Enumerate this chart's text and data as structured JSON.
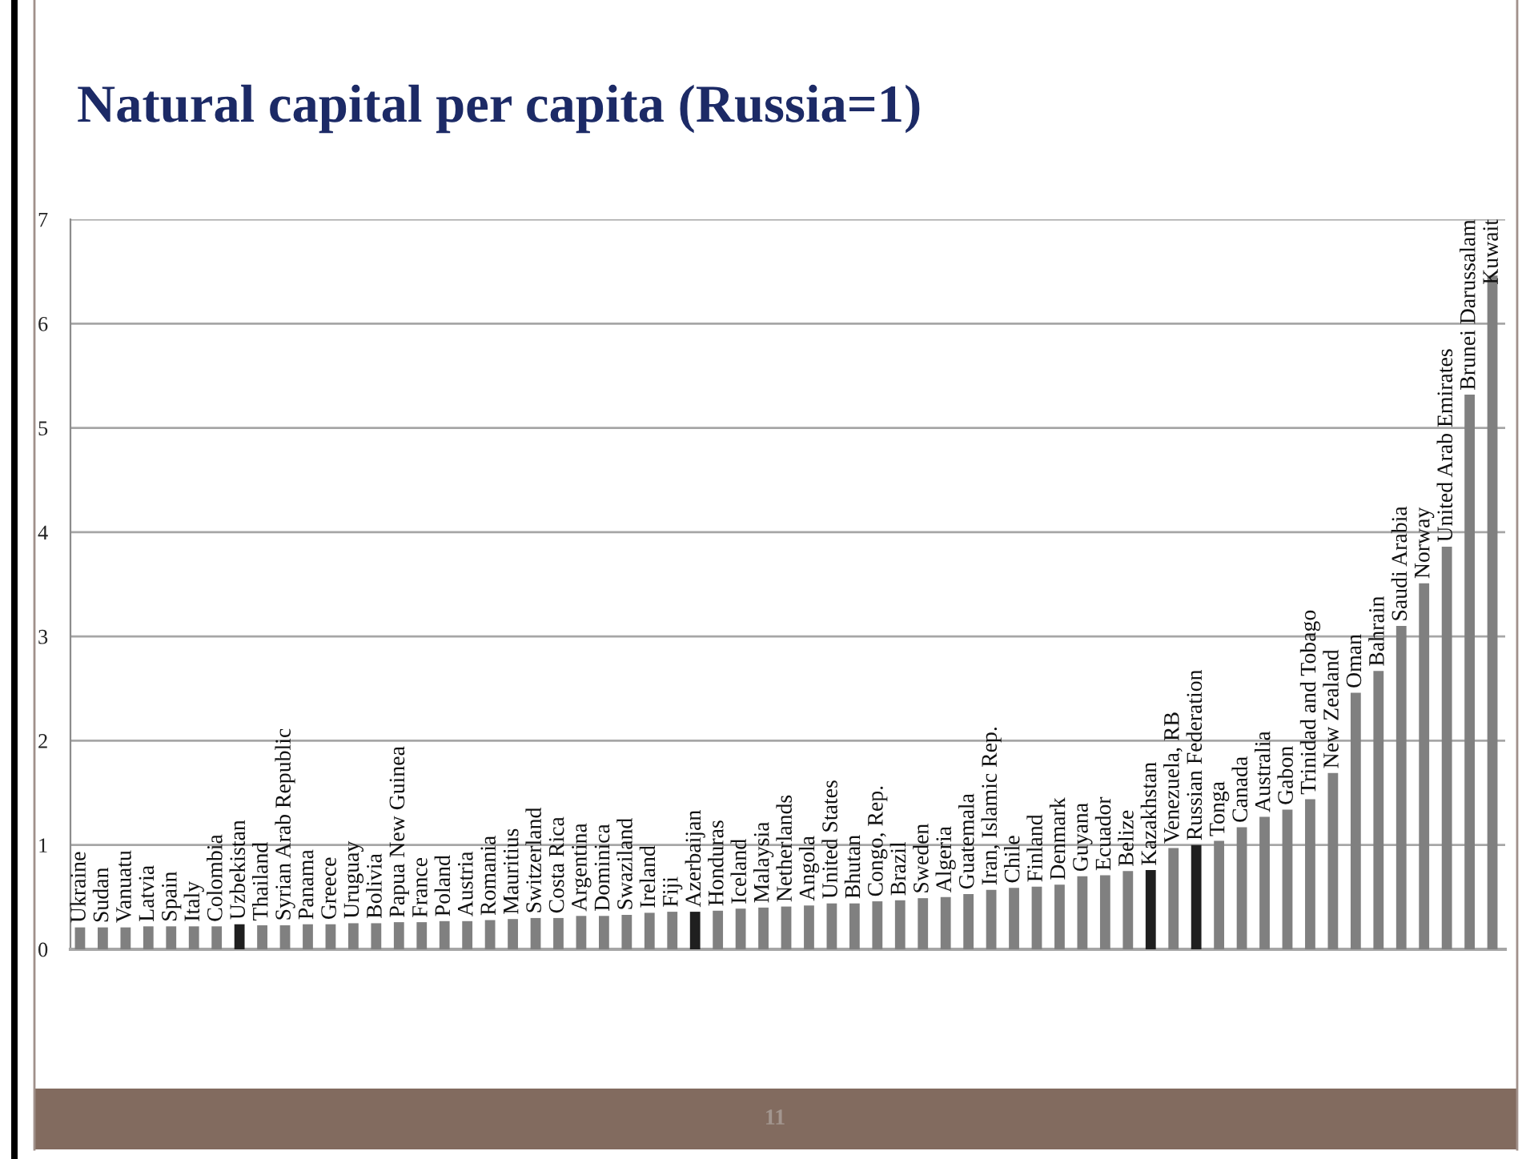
{
  "chart_data": {
    "type": "bar",
    "title": "Natural capital per capita (Russia=1)",
    "categories": [
      "Ukraine",
      "Sudan",
      "Vanuatu",
      "Latvia",
      "Spain",
      "Italy",
      "Colombia",
      "Uzbekistan",
      "Thailand",
      "Syrian Arab Republic",
      "Panama",
      "Greece",
      "Uruguay",
      "Bolivia",
      "Papua New Guinea",
      "France",
      "Poland",
      "Austria",
      "Romania",
      "Mauritius",
      "Switzerland",
      "Costa Rica",
      "Argentina",
      "Dominica",
      "Swaziland",
      "Ireland",
      "Fiji",
      "Azerbaijan",
      "Honduras",
      "Iceland",
      "Malaysia",
      "Netherlands",
      "Angola",
      "United States",
      "Bhutan",
      "Congo, Rep.",
      "Brazil",
      "Sweden",
      "Algeria",
      "Guatemala",
      "Iran, Islamic Rep.",
      "Chile",
      "Finland",
      "Denmark",
      "Guyana",
      "Ecuador",
      "Belize",
      "Kazakhstan",
      "Venezuela, RB",
      "Russian Federation",
      "Tonga",
      "Canada",
      "Australia",
      "Gabon",
      "Trinidad and Tobago",
      "New Zealand",
      "Oman",
      "Bahrain",
      "Saudi Arabia",
      "Norway",
      "United Arab Emirates",
      "Brunei Darussalam",
      "Kuwait"
    ],
    "values": [
      0.21,
      0.21,
      0.21,
      0.22,
      0.22,
      0.22,
      0.22,
      0.24,
      0.23,
      0.23,
      0.24,
      0.24,
      0.25,
      0.25,
      0.26,
      0.26,
      0.27,
      0.27,
      0.28,
      0.29,
      0.3,
      0.3,
      0.32,
      0.32,
      0.33,
      0.35,
      0.36,
      0.36,
      0.37,
      0.39,
      0.4,
      0.41,
      0.42,
      0.44,
      0.44,
      0.46,
      0.47,
      0.49,
      0.5,
      0.53,
      0.57,
      0.59,
      0.6,
      0.62,
      0.7,
      0.71,
      0.75,
      0.76,
      0.97,
      1.0,
      1.04,
      1.17,
      1.27,
      1.34,
      1.44,
      1.69,
      2.46,
      2.67,
      3.1,
      3.51,
      3.86,
      5.32,
      6.46
    ],
    "colors": [
      "#808080",
      "#808080",
      "#808080",
      "#808080",
      "#808080",
      "#808080",
      "#808080",
      "#1f1f1f",
      "#808080",
      "#808080",
      "#808080",
      "#808080",
      "#808080",
      "#808080",
      "#808080",
      "#808080",
      "#808080",
      "#808080",
      "#808080",
      "#808080",
      "#808080",
      "#808080",
      "#808080",
      "#808080",
      "#808080",
      "#808080",
      "#808080",
      "#1f1f1f",
      "#808080",
      "#808080",
      "#808080",
      "#808080",
      "#808080",
      "#808080",
      "#808080",
      "#808080",
      "#808080",
      "#808080",
      "#808080",
      "#808080",
      "#808080",
      "#808080",
      "#808080",
      "#808080",
      "#808080",
      "#808080",
      "#808080",
      "#1f1f1f",
      "#808080",
      "#1f1f1f",
      "#808080",
      "#808080",
      "#808080",
      "#808080",
      "#808080",
      "#808080",
      "#808080",
      "#808080",
      "#808080",
      "#808080",
      "#808080",
      "#808080",
      "#808080"
    ],
    "ylim": [
      0,
      7
    ],
    "yticks": [
      0,
      1,
      2,
      3,
      4,
      5,
      6,
      7
    ],
    "grid": "y",
    "tick_labels": "y",
    "annotations": [
      "11"
    ]
  }
}
